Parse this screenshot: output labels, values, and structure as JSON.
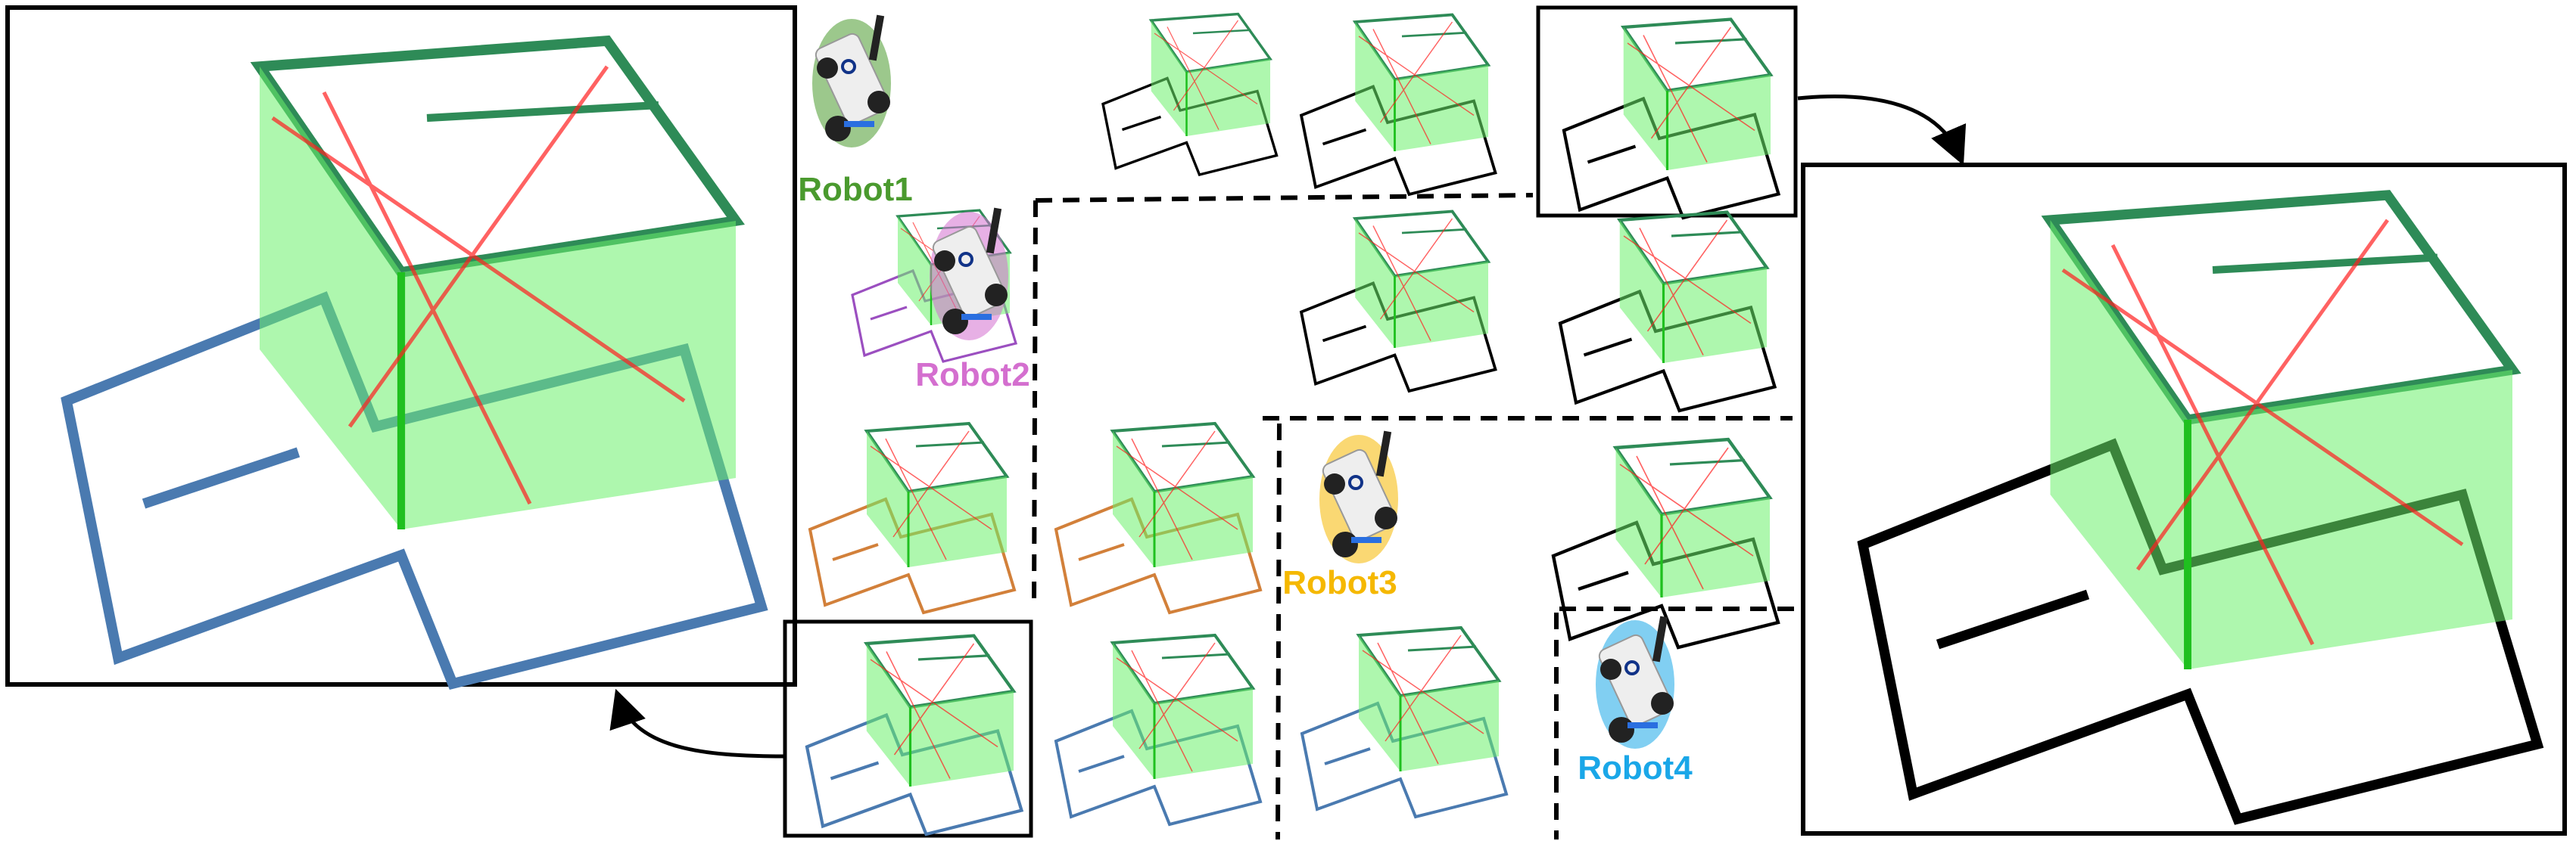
{
  "robots": [
    {
      "label": "Robot1",
      "color": "#4a9a2e"
    },
    {
      "label": "Robot2",
      "color": "#d46fcf"
    },
    {
      "label": "Robot3",
      "color": "#f5b800"
    },
    {
      "label": "Robot4",
      "color": "#1aa7e8"
    }
  ],
  "colors": {
    "map_walls": "#22e022",
    "loop_closures": "#ff2020",
    "trajectory_merged": "#4a7ab0",
    "trajectory_other": "#000000",
    "trajectory_robot3": "#d2803a"
  },
  "icons": [
    "robot-icon",
    "arrow-icon"
  ]
}
